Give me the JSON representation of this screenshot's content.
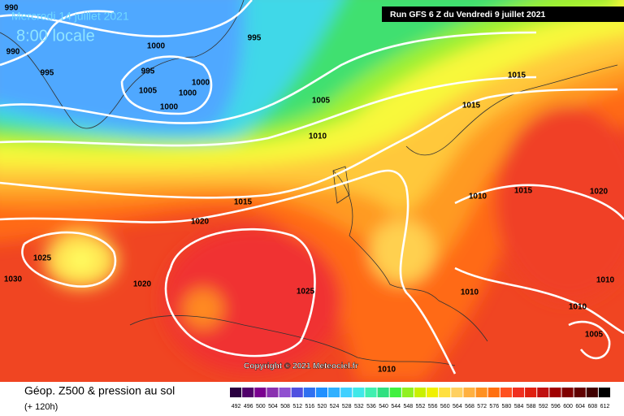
{
  "header": {
    "date": "Mercredi 14 juillet 2021",
    "time": "8:00 locale",
    "run": "Run GFS 6 Z du Vendredi 9 juillet 2021"
  },
  "isobar_labels": [
    990,
    990,
    995,
    1000,
    995,
    1000,
    1005,
    1000,
    995,
    1000,
    1005,
    1010,
    1015,
    1015,
    1010,
    1015,
    1020,
    1015,
    1020,
    1025,
    1030,
    1020,
    1025,
    1010,
    1010,
    1010,
    1005,
    1010
  ],
  "copyright": "Copyright © 2021 Meteociel.fr",
  "footer": {
    "title": "Géop. Z500 & pression au sol",
    "lead": "(+ 120h)"
  },
  "legend": {
    "values": [
      492,
      496,
      500,
      504,
      508,
      512,
      516,
      520,
      524,
      528,
      532,
      536,
      540,
      544,
      548,
      552,
      556,
      560,
      564,
      568,
      572,
      576,
      580,
      584,
      588,
      592,
      596,
      600,
      604,
      608,
      612
    ],
    "colors": [
      "#2a0040",
      "#50006a",
      "#7a0090",
      "#8a30b0",
      "#9050d0",
      "#5050e0",
      "#3070f0",
      "#2090ff",
      "#30b0ff",
      "#40d0ff",
      "#40e8e8",
      "#40f0b0",
      "#30e080",
      "#40f040",
      "#90f020",
      "#c8f000",
      "#f0f000",
      "#ffe040",
      "#ffd060",
      "#ffb040",
      "#ff9020",
      "#ff7010",
      "#ff5020",
      "#f03020",
      "#e02010",
      "#c01010",
      "#a00000",
      "#800000",
      "#600000",
      "#400000",
      "#000000"
    ]
  }
}
